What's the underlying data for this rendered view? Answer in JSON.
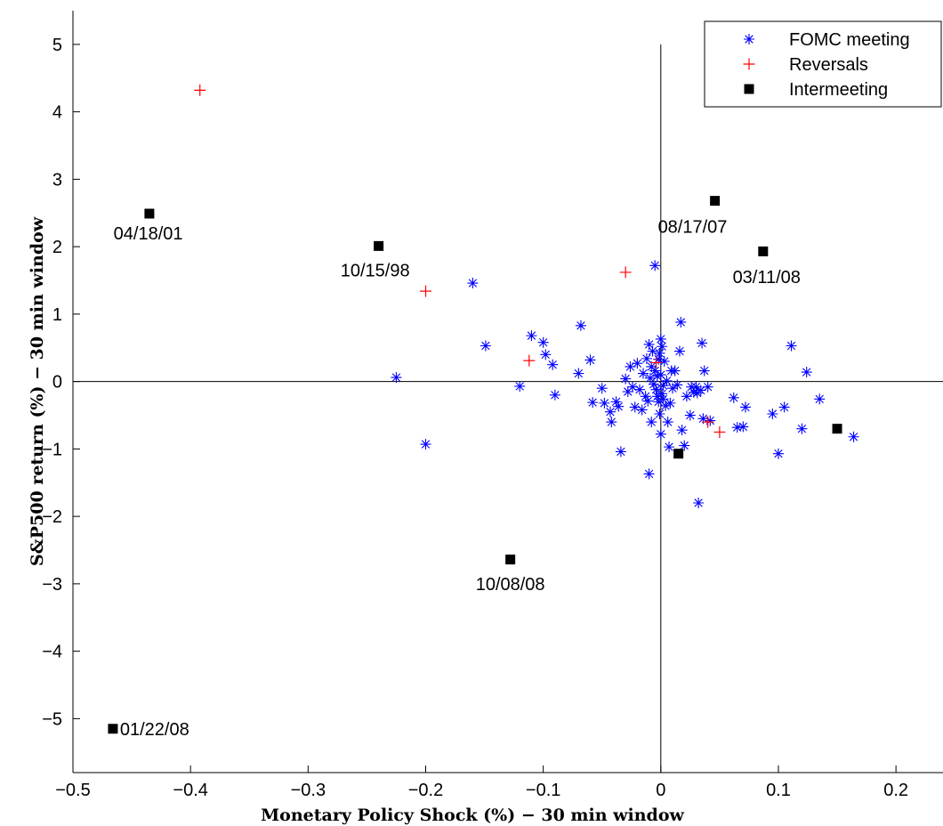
{
  "chart_data": {
    "type": "scatter",
    "title": "",
    "xlabel": "Monetary Policy Shock (%) − 30 min window",
    "ylabel": "S&P500 return (%) − 30 min window",
    "xlim": [
      -0.5,
      0.24
    ],
    "ylim": [
      -5.8,
      5.5
    ],
    "x_ticks": [
      -0.5,
      -0.4,
      -0.3,
      -0.2,
      -0.1,
      0,
      0.1,
      0.2
    ],
    "x_tick_labels": [
      "−0.5",
      "−0.4",
      "−0.3",
      "−0.2",
      "−0.1",
      "0",
      "0.1",
      "0.2"
    ],
    "y_ticks": [
      -5,
      -4,
      -3,
      -2,
      -1,
      0,
      1,
      2,
      3,
      4,
      5
    ],
    "y_tick_labels": [
      "−5",
      "−4",
      "−3",
      "−2",
      "−1",
      "0",
      "1",
      "2",
      "3",
      "4",
      "5"
    ],
    "grid": false,
    "reference_lines": {
      "x": 0,
      "y": 0
    },
    "legend_position": "top-right",
    "series": [
      {
        "name": "FOMC meeting",
        "marker": "asterisk",
        "color": "#0000ff",
        "points": [
          [
            -0.225,
            0.06
          ],
          [
            -0.2,
            -0.93
          ],
          [
            -0.16,
            1.46
          ],
          [
            -0.149,
            0.53
          ],
          [
            -0.12,
            -0.07
          ],
          [
            -0.11,
            0.68
          ],
          [
            -0.1,
            0.58
          ],
          [
            -0.098,
            0.4
          ],
          [
            -0.092,
            0.25
          ],
          [
            -0.09,
            -0.2
          ],
          [
            -0.07,
            0.12
          ],
          [
            -0.068,
            0.83
          ],
          [
            -0.06,
            0.32
          ],
          [
            -0.058,
            -0.31
          ],
          [
            -0.05,
            -0.1
          ],
          [
            -0.048,
            -0.32
          ],
          [
            -0.043,
            -0.45
          ],
          [
            -0.042,
            -0.6
          ],
          [
            -0.038,
            -0.3
          ],
          [
            -0.036,
            -0.37
          ],
          [
            -0.034,
            -1.04
          ],
          [
            -0.03,
            0.04
          ],
          [
            -0.028,
            -0.15
          ],
          [
            -0.026,
            0.22
          ],
          [
            -0.024,
            -0.08
          ],
          [
            -0.022,
            -0.38
          ],
          [
            -0.02,
            0.27
          ],
          [
            -0.018,
            -0.12
          ],
          [
            -0.016,
            -0.42
          ],
          [
            -0.015,
            0.12
          ],
          [
            -0.013,
            -0.22
          ],
          [
            -0.012,
            0.34
          ],
          [
            -0.011,
            -0.29
          ],
          [
            -0.01,
            0.55
          ],
          [
            -0.01,
            -1.37
          ],
          [
            -0.009,
            0.05
          ],
          [
            -0.008,
            -0.6
          ],
          [
            -0.008,
            0.22
          ],
          [
            -0.007,
            0.45
          ],
          [
            -0.006,
            -0.04
          ],
          [
            -0.005,
            0.16
          ],
          [
            -0.005,
            1.72
          ],
          [
            -0.004,
            -0.12
          ],
          [
            -0.003,
            0.08
          ],
          [
            -0.003,
            -0.22
          ],
          [
            -0.002,
            0.33
          ],
          [
            -0.002,
            -0.3
          ],
          [
            -0.001,
            -0.48
          ],
          [
            -0.001,
            0.42
          ],
          [
            0.0,
            -0.78
          ],
          [
            0.0,
            0.1
          ],
          [
            0.0,
            0.63
          ],
          [
            0.001,
            -0.18
          ],
          [
            0.001,
            0.52
          ],
          [
            0.002,
            -0.06
          ],
          [
            0.002,
            -0.26
          ],
          [
            0.003,
            0.3
          ],
          [
            0.004,
            -0.36
          ],
          [
            0.005,
            0.01
          ],
          [
            0.006,
            -0.6
          ],
          [
            0.007,
            -0.97
          ],
          [
            0.008,
            -0.32
          ],
          [
            0.009,
            0.16
          ],
          [
            0.01,
            -0.1
          ],
          [
            0.012,
            0.16
          ],
          [
            0.014,
            -0.05
          ],
          [
            0.016,
            0.45
          ],
          [
            0.017,
            0.88
          ],
          [
            0.018,
            -0.72
          ],
          [
            0.02,
            -0.95
          ],
          [
            0.022,
            -0.22
          ],
          [
            0.025,
            -0.5
          ],
          [
            0.026,
            -0.08
          ],
          [
            0.028,
            -0.16
          ],
          [
            0.03,
            -0.08
          ],
          [
            0.031,
            -0.17
          ],
          [
            0.032,
            -1.8
          ],
          [
            0.034,
            -0.13
          ],
          [
            0.035,
            0.57
          ],
          [
            0.036,
            -0.55
          ],
          [
            0.037,
            0.16
          ],
          [
            0.04,
            -0.08
          ],
          [
            0.042,
            -0.58
          ],
          [
            0.062,
            -0.24
          ],
          [
            0.065,
            -0.68
          ],
          [
            0.07,
            -0.67
          ],
          [
            0.072,
            -0.38
          ],
          [
            0.095,
            -0.48
          ],
          [
            0.1,
            -1.07
          ],
          [
            0.105,
            -0.38
          ],
          [
            0.111,
            0.53
          ],
          [
            0.12,
            -0.7
          ],
          [
            0.124,
            0.14
          ],
          [
            0.135,
            -0.26
          ],
          [
            0.164,
            -0.82
          ]
        ]
      },
      {
        "name": "Reversals",
        "marker": "plus",
        "color": "#ff0000",
        "points": [
          [
            -0.392,
            4.32
          ],
          [
            -0.2,
            1.34
          ],
          [
            -0.112,
            0.31
          ],
          [
            -0.03,
            1.62
          ],
          [
            -0.004,
            0.28
          ],
          [
            0.04,
            -0.6
          ],
          [
            0.05,
            -0.75
          ]
        ]
      },
      {
        "name": "Intermeeting",
        "marker": "square",
        "color": "#000000",
        "points": [
          [
            -0.435,
            2.49
          ],
          [
            -0.24,
            2.01
          ],
          [
            -0.128,
            -2.64
          ],
          [
            0.015,
            -1.07
          ],
          [
            0.046,
            2.68
          ],
          [
            0.087,
            1.93
          ],
          [
            0.15,
            -0.7
          ],
          [
            -0.466,
            -5.15
          ]
        ]
      }
    ],
    "annotations": [
      {
        "text": "04/18/01",
        "x": -0.436,
        "y": 2.2,
        "anchor": "middle"
      },
      {
        "text": "10/15/98",
        "x": -0.243,
        "y": 1.65,
        "anchor": "middle"
      },
      {
        "text": "08/17/07",
        "x": 0.027,
        "y": 2.3,
        "anchor": "middle"
      },
      {
        "text": "03/11/08",
        "x": 0.09,
        "y": 1.55,
        "anchor": "middle"
      },
      {
        "text": "10/08/08",
        "x": -0.128,
        "y": -3.0,
        "anchor": "middle"
      },
      {
        "text": "01/22/08",
        "x": -0.46,
        "y": -5.15,
        "anchor": "start"
      }
    ]
  }
}
